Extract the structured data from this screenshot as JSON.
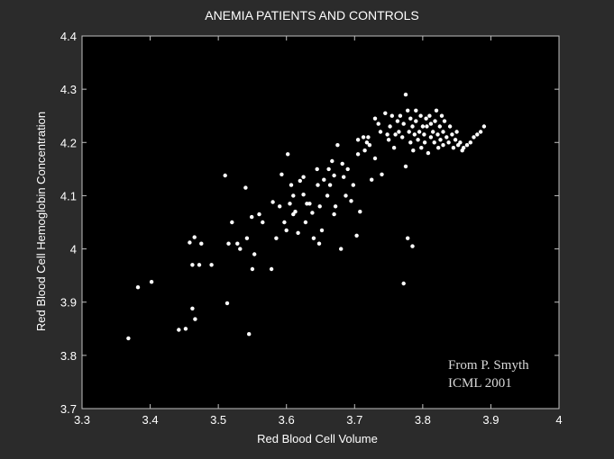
{
  "chart_data": {
    "type": "scatter",
    "title": "ANEMIA PATIENTS AND CONTROLS",
    "xlabel": "Red Blood Cell Volume",
    "ylabel": "Red Blood Cell Hemoglobin Concentration",
    "xlim": [
      3.3,
      4.0
    ],
    "ylim": [
      3.7,
      4.4
    ],
    "xticks": [
      "3.3",
      "3.4",
      "3.5",
      "3.6",
      "3.7",
      "3.8",
      "3.9",
      "4"
    ],
    "yticks": [
      "3.7",
      "3.8",
      "3.9",
      "4",
      "4.1",
      "4.2",
      "4.3",
      "4.4"
    ],
    "grid": false,
    "background": "#000000",
    "marker_color": "#ffffff",
    "annotation": [
      "From P. Smyth",
      "ICML 2001"
    ],
    "x": [
      3.368,
      3.382,
      3.402,
      3.442,
      3.452,
      3.458,
      3.462,
      3.465,
      3.462,
      3.466,
      3.475,
      3.472,
      3.49,
      3.51,
      3.515,
      3.513,
      3.52,
      3.528,
      3.532,
      3.54,
      3.542,
      3.545,
      3.549,
      3.55,
      3.553,
      3.56,
      3.565,
      3.578,
      3.58,
      3.585,
      3.59,
      3.593,
      3.597,
      3.6,
      3.602,
      3.605,
      3.607,
      3.61,
      3.61,
      3.613,
      3.617,
      3.62,
      3.625,
      3.628,
      3.625,
      3.63,
      3.634,
      3.638,
      3.64,
      3.645,
      3.646,
      3.648,
      3.649,
      3.652,
      3.655,
      3.66,
      3.662,
      3.664,
      3.667,
      3.67,
      3.67,
      3.672,
      3.675,
      3.68,
      3.682,
      3.684,
      3.687,
      3.69,
      3.695,
      3.698,
      3.703,
      3.705,
      3.705,
      3.708,
      3.713,
      3.715,
      3.718,
      3.72,
      3.722,
      3.725,
      3.73,
      3.73,
      3.735,
      3.738,
      3.74,
      3.745,
      3.748,
      3.75,
      3.752,
      3.755,
      3.758,
      3.76,
      3.763,
      3.765,
      3.767,
      3.77,
      3.772,
      3.775,
      3.775,
      3.778,
      3.78,
      3.782,
      3.782,
      3.785,
      3.786,
      3.788,
      3.79,
      3.79,
      3.793,
      3.795,
      3.797,
      3.798,
      3.8,
      3.802,
      3.803,
      3.805,
      3.806,
      3.808,
      3.81,
      3.812,
      3.812,
      3.815,
      3.817,
      3.818,
      3.82,
      3.822,
      3.823,
      3.825,
      3.826,
      3.828,
      3.83,
      3.83,
      3.832,
      3.835,
      3.838,
      3.84,
      3.843,
      3.845,
      3.848,
      3.85,
      3.852,
      3.855,
      3.858,
      3.86,
      3.865,
      3.87,
      3.875,
      3.88,
      3.885,
      3.89,
      3.772,
      3.778,
      3.785
    ],
    "y": [
      3.832,
      3.928,
      3.938,
      3.848,
      3.85,
      4.012,
      3.888,
      4.022,
      3.97,
      3.868,
      4.01,
      3.97,
      3.97,
      4.138,
      4.01,
      3.898,
      4.05,
      4.01,
      4.0,
      4.115,
      4.02,
      3.84,
      4.06,
      3.962,
      3.99,
      4.065,
      4.05,
      3.962,
      4.088,
      4.02,
      4.08,
      4.14,
      4.05,
      4.035,
      4.178,
      4.085,
      4.12,
      4.1,
      4.065,
      4.07,
      4.03,
      4.128,
      4.102,
      4.05,
      4.135,
      4.085,
      4.085,
      4.068,
      4.02,
      4.15,
      4.12,
      4.01,
      4.08,
      4.035,
      4.13,
      4.1,
      4.15,
      4.12,
      4.165,
      4.065,
      4.138,
      4.08,
      4.195,
      4.0,
      4.16,
      4.135,
      4.1,
      4.15,
      4.09,
      4.12,
      4.025,
      4.205,
      4.178,
      4.07,
      4.21,
      4.185,
      4.2,
      4.21,
      4.195,
      4.13,
      4.245,
      4.17,
      4.235,
      4.22,
      4.14,
      4.255,
      4.215,
      4.205,
      4.23,
      4.25,
      4.19,
      4.215,
      4.24,
      4.22,
      4.25,
      4.21,
      4.235,
      4.29,
      4.155,
      4.26,
      4.22,
      4.2,
      4.245,
      4.23,
      4.185,
      4.215,
      4.24,
      4.26,
      4.205,
      4.22,
      4.25,
      4.19,
      4.23,
      4.215,
      4.2,
      4.245,
      4.23,
      4.18,
      4.25,
      4.21,
      4.235,
      4.22,
      4.2,
      4.24,
      4.26,
      4.215,
      4.19,
      4.23,
      4.205,
      4.25,
      4.22,
      4.195,
      4.24,
      4.21,
      4.2,
      4.23,
      4.215,
      4.19,
      4.205,
      4.22,
      4.195,
      4.2,
      4.185,
      4.19,
      4.195,
      4.2,
      4.21,
      4.215,
      4.22,
      4.23,
      3.935,
      4.02,
      4.005
    ]
  }
}
